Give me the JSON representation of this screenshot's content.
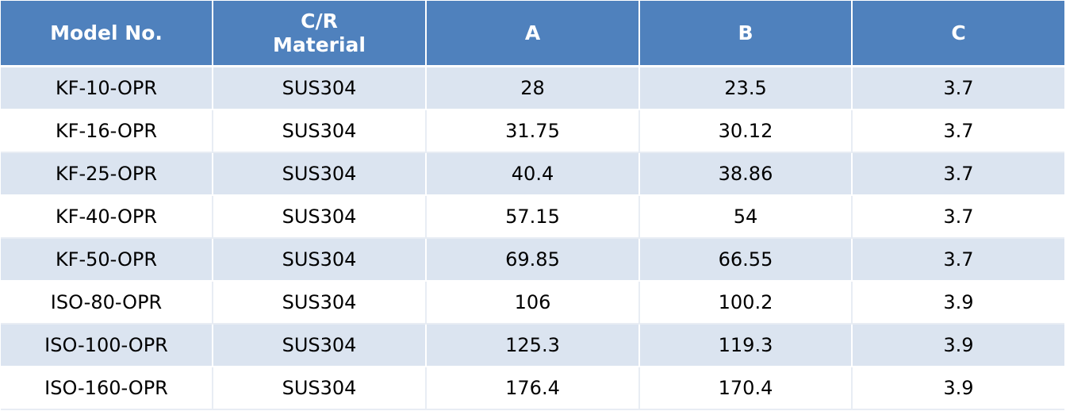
{
  "table": {
    "headers": {
      "model": "Model No.",
      "material_line1": "C/R",
      "material_line2": "Material",
      "a": "A",
      "b": "B",
      "c": "C"
    },
    "rows": [
      [
        "KF-10-OPR",
        "SUS304",
        "28",
        "23.5",
        "3.7"
      ],
      [
        "KF-16-OPR",
        "SUS304",
        "31.75",
        "30.12",
        "3.7"
      ],
      [
        "KF-25-OPR",
        "SUS304",
        "40.4",
        "38.86",
        "3.7"
      ],
      [
        "KF-40-OPR",
        "SUS304",
        "57.15",
        "54",
        "3.7"
      ],
      [
        "KF-50-OPR",
        "SUS304",
        "69.85",
        "66.55",
        "3.7"
      ],
      [
        "ISO-80-OPR",
        "SUS304",
        "106",
        "100.2",
        "3.9"
      ],
      [
        "ISO-100-OPR",
        "SUS304",
        "125.3",
        "119.3",
        "3.9"
      ],
      [
        "ISO-160-OPR",
        "SUS304",
        "176.4",
        "170.4",
        "3.9"
      ]
    ],
    "colors": {
      "header_bg": "#4f81bd",
      "header_text": "#ffffff",
      "band_row_bg": "#dbe4f0",
      "plain_row_bg": "#ffffff"
    }
  }
}
